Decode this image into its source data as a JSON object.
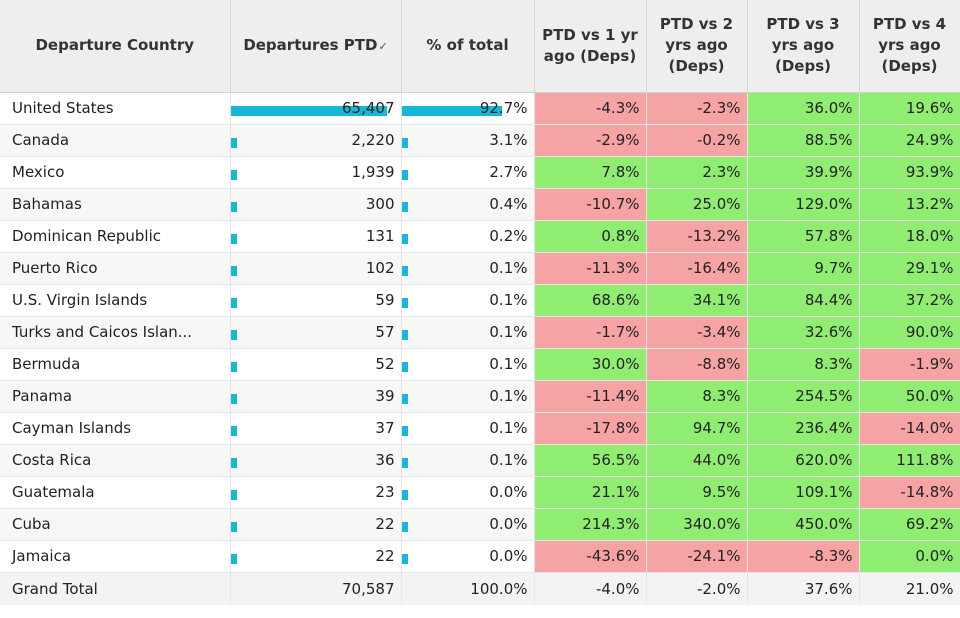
{
  "headers": {
    "country": "Departure Country",
    "departures": "Departures PTD",
    "pct_total": "% of total",
    "vs1": "PTD vs 1 yr ago (Deps)",
    "vs2": "PTD vs 2 yrs ago (Deps)",
    "vs3": "PTD vs 3 yrs ago (Deps)",
    "vs4": "PTD vs 4 yrs ago (Deps)"
  },
  "colors": {
    "positive": "#8fed72",
    "negative": "#f6a3a3",
    "bar": "#15b8d6"
  },
  "rows": [
    {
      "country": "United States",
      "departures": "65,407",
      "dep_share": 1.0,
      "pct": "92.7%",
      "pct_share": 0.927,
      "vs1": "-4.3%",
      "vs2": "-2.3%",
      "vs3": "36.0%",
      "vs4": "19.6%"
    },
    {
      "country": "Canada",
      "departures": "2,220",
      "dep_share": 0.034,
      "pct": "3.1%",
      "pct_share": 0.031,
      "vs1": "-2.9%",
      "vs2": "-0.2%",
      "vs3": "88.5%",
      "vs4": "24.9%"
    },
    {
      "country": "Mexico",
      "departures": "1,939",
      "dep_share": 0.03,
      "pct": "2.7%",
      "pct_share": 0.027,
      "vs1": "7.8%",
      "vs2": "2.3%",
      "vs3": "39.9%",
      "vs4": "93.9%"
    },
    {
      "country": "Bahamas",
      "departures": "300",
      "dep_share": 0.005,
      "pct": "0.4%",
      "pct_share": 0.004,
      "vs1": "-10.7%",
      "vs2": "25.0%",
      "vs3": "129.0%",
      "vs4": "13.2%"
    },
    {
      "country": "Dominican Republic",
      "departures": "131",
      "dep_share": 0.002,
      "pct": "0.2%",
      "pct_share": 0.002,
      "vs1": "0.8%",
      "vs2": "-13.2%",
      "vs3": "57.8%",
      "vs4": "18.0%"
    },
    {
      "country": "Puerto Rico",
      "departures": "102",
      "dep_share": 0.002,
      "pct": "0.1%",
      "pct_share": 0.001,
      "vs1": "-11.3%",
      "vs2": "-16.4%",
      "vs3": "9.7%",
      "vs4": "29.1%"
    },
    {
      "country": "U.S. Virgin Islands",
      "departures": "59",
      "dep_share": 0.001,
      "pct": "0.1%",
      "pct_share": 0.001,
      "vs1": "68.6%",
      "vs2": "34.1%",
      "vs3": "84.4%",
      "vs4": "37.2%"
    },
    {
      "country": "Turks and Caicos Islan...",
      "departures": "57",
      "dep_share": 0.001,
      "pct": "0.1%",
      "pct_share": 0.001,
      "vs1": "-1.7%",
      "vs2": "-3.4%",
      "vs3": "32.6%",
      "vs4": "90.0%"
    },
    {
      "country": "Bermuda",
      "departures": "52",
      "dep_share": 0.001,
      "pct": "0.1%",
      "pct_share": 0.001,
      "vs1": "30.0%",
      "vs2": "-8.8%",
      "vs3": "8.3%",
      "vs4": "-1.9%"
    },
    {
      "country": "Panama",
      "departures": "39",
      "dep_share": 0.001,
      "pct": "0.1%",
      "pct_share": 0.001,
      "vs1": "-11.4%",
      "vs2": "8.3%",
      "vs3": "254.5%",
      "vs4": "50.0%"
    },
    {
      "country": "Cayman Islands",
      "departures": "37",
      "dep_share": 0.001,
      "pct": "0.1%",
      "pct_share": 0.001,
      "vs1": "-17.8%",
      "vs2": "94.7%",
      "vs3": "236.4%",
      "vs4": "-14.0%"
    },
    {
      "country": "Costa Rica",
      "departures": "36",
      "dep_share": 0.001,
      "pct": "0.1%",
      "pct_share": 0.001,
      "vs1": "56.5%",
      "vs2": "44.0%",
      "vs3": "620.0%",
      "vs4": "111.8%"
    },
    {
      "country": "Guatemala",
      "departures": "23",
      "dep_share": 0.0,
      "pct": "0.0%",
      "pct_share": 0.0,
      "vs1": "21.1%",
      "vs2": "9.5%",
      "vs3": "109.1%",
      "vs4": "-14.8%"
    },
    {
      "country": "Cuba",
      "departures": "22",
      "dep_share": 0.0,
      "pct": "0.0%",
      "pct_share": 0.0,
      "vs1": "214.3%",
      "vs2": "340.0%",
      "vs3": "450.0%",
      "vs4": "69.2%"
    },
    {
      "country": "Jamaica",
      "departures": "22",
      "dep_share": 0.0,
      "pct": "0.0%",
      "pct_share": 0.0,
      "vs1": "-43.6%",
      "vs2": "-24.1%",
      "vs3": "-8.3%",
      "vs4": "0.0%"
    }
  ],
  "total": {
    "label": "Grand Total",
    "departures": "70,587",
    "pct": "100.0%",
    "vs1": "-4.0%",
    "vs2": "-2.0%",
    "vs3": "37.6%",
    "vs4": "21.0%"
  }
}
